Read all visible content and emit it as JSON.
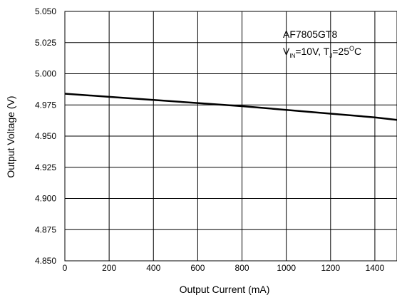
{
  "chart_data": {
    "type": "line",
    "title": "",
    "xlabel": "Output Current (mA)",
    "ylabel": "Output Voltage (V)",
    "xlim": [
      0,
      1500
    ],
    "ylim": [
      4.85,
      5.05
    ],
    "x_ticks": [
      0,
      200,
      400,
      600,
      800,
      1000,
      1200,
      1400
    ],
    "y_ticks": [
      4.85,
      4.875,
      4.9,
      4.925,
      4.95,
      4.975,
      5.0,
      5.025,
      5.05
    ],
    "x_tick_labels": [
      "0",
      "200",
      "400",
      "600",
      "800",
      "1000",
      "1200",
      "1400"
    ],
    "y_tick_labels": [
      "4.850",
      "4.875",
      "4.900",
      "4.925",
      "4.950",
      "4.975",
      "5.000",
      "5.025",
      "5.050"
    ],
    "grid": true,
    "series": [
      {
        "x": [
          0,
          200,
          400,
          600,
          800,
          1000,
          1200,
          1400,
          1500
        ],
        "y": [
          4.984,
          4.9815,
          4.979,
          4.9765,
          4.974,
          4.971,
          4.968,
          4.965,
          4.963
        ]
      }
    ],
    "annotation": {
      "part": "AF7805GT8",
      "cond_v_prefix": "V",
      "cond_v_sub": "IN",
      "cond_v_value": "=10V, T",
      "cond_t_sub": "J",
      "cond_t_value": "=25",
      "cond_deg_sup": "O",
      "cond_unit": "C"
    }
  }
}
